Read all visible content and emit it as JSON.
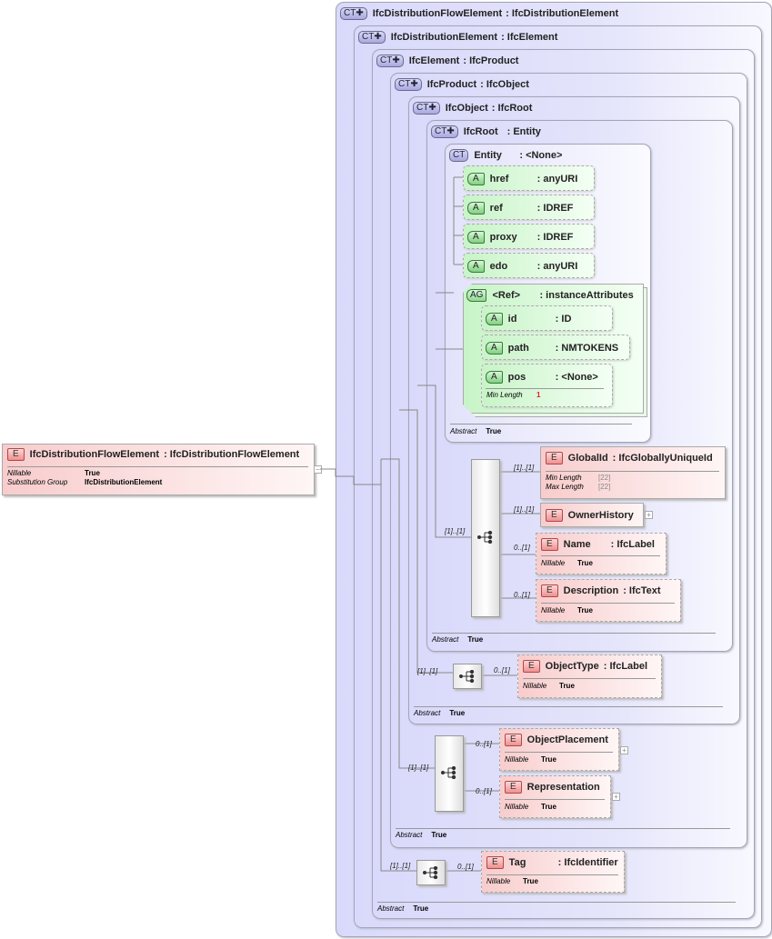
{
  "root_element": {
    "badge": "E",
    "name": "IfcDistributionFlowElement",
    "type": ": IfcDistributionFlowElement",
    "props": [
      {
        "k": "Nillable",
        "v": "True"
      },
      {
        "k": "Substitution Group",
        "v": "IfcDistributionElement"
      }
    ],
    "collapse": "−"
  },
  "complex_types": [
    {
      "badge": "CT✚",
      "name": "IfcDistributionFlowElement",
      "type": ": IfcDistributionElement"
    },
    {
      "badge": "CT✚",
      "name": "IfcDistributionElement",
      "type": ": IfcElement"
    },
    {
      "badge": "CT✚",
      "name": "IfcElement",
      "type": ": IfcProduct",
      "abstract": {
        "k": "Abstract",
        "v": "True"
      }
    },
    {
      "badge": "CT✚",
      "name": "IfcProduct",
      "type": ": IfcObject",
      "abstract": {
        "k": "Abstract",
        "v": "True"
      }
    },
    {
      "badge": "CT✚",
      "name": "IfcObject",
      "type": ": IfcRoot",
      "abstract": {
        "k": "Abstract",
        "v": "True"
      }
    },
    {
      "badge": "CT✚",
      "name": "IfcRoot",
      "type": ": Entity",
      "abstract": {
        "k": "Abstract",
        "v": "True"
      }
    },
    {
      "badge": "CT",
      "name": "Entity",
      "type": ": <None>",
      "abstract": {
        "k": "Abstract",
        "v": "True"
      }
    }
  ],
  "attributes": [
    {
      "badge": "A",
      "name": "href",
      "type": ": anyURI"
    },
    {
      "badge": "A",
      "name": "ref",
      "type": ": IDREF"
    },
    {
      "badge": "A",
      "name": "proxy",
      "type": ": IDREF"
    },
    {
      "badge": "A",
      "name": "edo",
      "type": ": anyURI"
    }
  ],
  "attribute_group": {
    "badge": "AG",
    "name": "<Ref>",
    "type": ": instanceAttributes",
    "attributes": [
      {
        "badge": "A",
        "name": "id",
        "type": ": ID"
      },
      {
        "badge": "A",
        "name": "path",
        "type": ": NMTOKENS"
      },
      {
        "badge": "A",
        "name": "pos",
        "type": ": <None>",
        "facet": {
          "k": "Min Length",
          "v": "1"
        }
      }
    ]
  },
  "elements": [
    {
      "badge": "E",
      "name": "GlobalId",
      "type": ": IfcGloballyUniqueId",
      "card": "[1]..[1]",
      "props": [
        {
          "k": "Min Length",
          "v": "[22]"
        },
        {
          "k": "Max Length",
          "v": "[22]"
        }
      ]
    },
    {
      "badge": "E",
      "name": "OwnerHistory",
      "type": "",
      "card": "[1]..[1]",
      "expand": "+"
    },
    {
      "badge": "E",
      "name": "Name",
      "type": ": IfcLabel",
      "card": "0..[1]",
      "props": [
        {
          "k": "Nillable",
          "v": "True"
        }
      ]
    },
    {
      "badge": "E",
      "name": "Description",
      "type": ": IfcText",
      "card": "0..[1]",
      "props": [
        {
          "k": "Nillable",
          "v": "True"
        }
      ]
    },
    {
      "badge": "E",
      "name": "ObjectType",
      "type": ": IfcLabel",
      "card": "0..[1]",
      "props": [
        {
          "k": "Nillable",
          "v": "True"
        }
      ]
    },
    {
      "badge": "E",
      "name": "ObjectPlacement",
      "type": "",
      "card": "0..[1]",
      "expand": "+",
      "props": [
        {
          "k": "Nillable",
          "v": "True"
        }
      ]
    },
    {
      "badge": "E",
      "name": "Representation",
      "type": "",
      "card": "0..[1]",
      "expand": "+",
      "props": [
        {
          "k": "Nillable",
          "v": "True"
        }
      ]
    },
    {
      "badge": "E",
      "name": "Tag",
      "type": ": IfcIdentifier",
      "card": "0..[1]",
      "props": [
        {
          "k": "Nillable",
          "v": "True"
        }
      ]
    }
  ],
  "sequences": [
    {
      "card": "[1]..[1]"
    },
    {
      "card": "[1]..[1]"
    },
    {
      "card": "[1]..[1]"
    },
    {
      "card": "[1]..[1]"
    }
  ],
  "colors": {
    "complex_type": "#dcdcfa",
    "attribute": "#c8f4c8",
    "element": "#f8cccc",
    "facet_value": "#e02020"
  }
}
